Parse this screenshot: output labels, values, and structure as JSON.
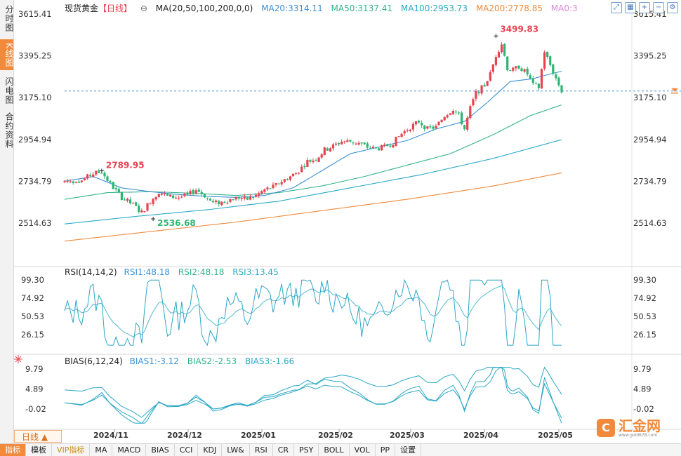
{
  "sidebar": {
    "tabs": [
      "分时图",
      "K线图",
      "闪电图",
      "合约资料"
    ],
    "active": 1
  },
  "legend_main": {
    "name": "现货黄金",
    "period": "【日线】",
    "ma_label": "MA(20,50,100,200,0,0)",
    "ma20": "MA20:3314.11",
    "ma50": "MA50:3137.41",
    "ma100": "MA100:2953.73",
    "ma200": "MA200:2778.85",
    "ma0": "MA0:3"
  },
  "legend_rsi": {
    "label": "RSI(14,14,2)",
    "rsi1": "RSI1:48.18",
    "rsi2": "RSI2:48.18",
    "rsi3": "RSI3:13.45"
  },
  "legend_bias": {
    "label": "BIAS(6,12,24)",
    "bias1": "BIAS1:-3.12",
    "bias2": "BIAS2:-2.53",
    "bias3": "BIAS3:-1.66"
  },
  "toolbar_icons": [
    "expand-icon",
    "grid-icon",
    "zoom-in-icon",
    "zoom-out-icon",
    "settings-icon"
  ],
  "bottom_tabs": [
    "指标",
    "模板",
    "VIP指标",
    "MA",
    "MACD",
    "BIAS",
    "CCI",
    "KDJ",
    "LW&",
    "RSI",
    "CR",
    "PSY",
    "BOLL",
    "VOL",
    "PP",
    "设置"
  ],
  "period_selector": "日线",
  "logo": {
    "text": "汇金网",
    "url": "www.gold678.com"
  },
  "colors": {
    "up": "#e8424f",
    "down": "#2bb673",
    "ma20": "#3a8fd6",
    "ma50": "#33b38a",
    "ma100": "#28a9c7",
    "ma200": "#f08a3c",
    "rsi": "#2ba7c5",
    "accent": "#f28a3b"
  },
  "chart_data": [
    {
      "type": "candlestick",
      "title": "现货黄金",
      "y_ticks": [
        "3615.41",
        "3395.25",
        "3175.10",
        "2954.94",
        "2734.79",
        "2514.63"
      ],
      "ylim": [
        2450,
        3660
      ],
      "x_ticks": [
        "2024/11",
        "2024/12",
        "2025/01",
        "2025/02",
        "2025/03",
        "2025/04",
        "2025/05"
      ],
      "annotations": [
        {
          "text": "3499.83",
          "value": 3499.83
        },
        {
          "text": "2789.95",
          "value": 2789.95
        },
        {
          "text": "2536.68",
          "value": 2536.68
        }
      ],
      "last_price_line": 3210,
      "anchors": [
        [
          0,
          2735
        ],
        [
          6,
          2740
        ],
        [
          10,
          2775
        ],
        [
          13,
          2785
        ],
        [
          16,
          2720
        ],
        [
          20,
          2650
        ],
        [
          24,
          2610
        ],
        [
          27,
          2570
        ],
        [
          30,
          2630
        ],
        [
          33,
          2680
        ],
        [
          36,
          2655
        ],
        [
          40,
          2650
        ],
        [
          43,
          2660
        ],
        [
          46,
          2690
        ],
        [
          49,
          2660
        ],
        [
          52,
          2620
        ],
        [
          55,
          2625
        ],
        [
          58,
          2640
        ],
        [
          61,
          2650
        ],
        [
          64,
          2640
        ],
        [
          67,
          2660
        ],
        [
          70,
          2690
        ],
        [
          73,
          2705
        ],
        [
          76,
          2735
        ],
        [
          79,
          2760
        ],
        [
          82,
          2790
        ],
        [
          85,
          2840
        ],
        [
          88,
          2850
        ],
        [
          91,
          2900
        ],
        [
          94,
          2920
        ],
        [
          97,
          2945
        ],
        [
          100,
          2945
        ],
        [
          103,
          2935
        ],
        [
          106,
          2915
        ],
        [
          109,
          2905
        ],
        [
          112,
          2915
        ],
        [
          115,
          2940
        ],
        [
          118,
          2985
        ],
        [
          121,
          3020
        ],
        [
          124,
          3050
        ],
        [
          127,
          3010
        ],
        [
          130,
          3020
        ],
        [
          133,
          3080
        ],
        [
          136,
          3115
        ],
        [
          138,
          3080
        ],
        [
          140,
          3010
        ],
        [
          142,
          3120
        ],
        [
          144,
          3200
        ],
        [
          147,
          3240
        ],
        [
          149,
          3300
        ],
        [
          151,
          3399
        ],
        [
          153,
          3460
        ],
        [
          155,
          3330
        ],
        [
          157,
          3320
        ],
        [
          159,
          3340
        ],
        [
          162,
          3300
        ],
        [
          164,
          3240
        ],
        [
          166,
          3230
        ],
        [
          168,
          3420
        ],
        [
          171,
          3310
        ],
        [
          174,
          3210
        ]
      ],
      "ma20_anchors": [
        [
          0,
          2735
        ],
        [
          10,
          2760
        ],
        [
          20,
          2700
        ],
        [
          30,
          2680
        ],
        [
          40,
          2665
        ],
        [
          50,
          2655
        ],
        [
          60,
          2650
        ],
        [
          70,
          2660
        ],
        [
          80,
          2700
        ],
        [
          90,
          2790
        ],
        [
          100,
          2880
        ],
        [
          110,
          2915
        ],
        [
          120,
          2950
        ],
        [
          130,
          3010
        ],
        [
          140,
          3050
        ],
        [
          148,
          3150
        ],
        [
          156,
          3260
        ],
        [
          164,
          3275
        ],
        [
          170,
          3300
        ],
        [
          174,
          3314
        ]
      ],
      "ma50_anchors": [
        [
          0,
          2640
        ],
        [
          15,
          2675
        ],
        [
          30,
          2680
        ],
        [
          45,
          2672
        ],
        [
          60,
          2660
        ],
        [
          75,
          2675
        ],
        [
          90,
          2710
        ],
        [
          105,
          2760
        ],
        [
          120,
          2820
        ],
        [
          135,
          2880
        ],
        [
          150,
          2980
        ],
        [
          163,
          3080
        ],
        [
          174,
          3137
        ]
      ],
      "ma100_anchors": [
        [
          0,
          2510
        ],
        [
          25,
          2550
        ],
        [
          50,
          2585
        ],
        [
          75,
          2630
        ],
        [
          100,
          2700
        ],
        [
          125,
          2770
        ],
        [
          150,
          2855
        ],
        [
          174,
          2954
        ]
      ],
      "ma200_anchors": [
        [
          0,
          2420
        ],
        [
          30,
          2470
        ],
        [
          60,
          2520
        ],
        [
          90,
          2580
        ],
        [
          120,
          2640
        ],
        [
          150,
          2710
        ],
        [
          174,
          2779
        ]
      ],
      "n_bars": 175
    },
    {
      "type": "line",
      "title": "RSI(14,14,2)",
      "y_ticks": [
        "99.30",
        "74.92",
        "50.53",
        "26.15"
      ],
      "series": [
        {
          "name": "RSI1",
          "last": 48.18
        },
        {
          "name": "RSI2",
          "last": 48.18
        },
        {
          "name": "RSI3",
          "last": 13.45
        }
      ]
    },
    {
      "type": "line",
      "title": "BIAS(6,12,24)",
      "y_ticks": [
        "9.79",
        "4.89",
        "-0.02"
      ],
      "series": [
        {
          "name": "BIAS1",
          "last": -3.12
        },
        {
          "name": "BIAS2",
          "last": -2.53
        },
        {
          "name": "BIAS3",
          "last": -1.66
        }
      ]
    }
  ]
}
